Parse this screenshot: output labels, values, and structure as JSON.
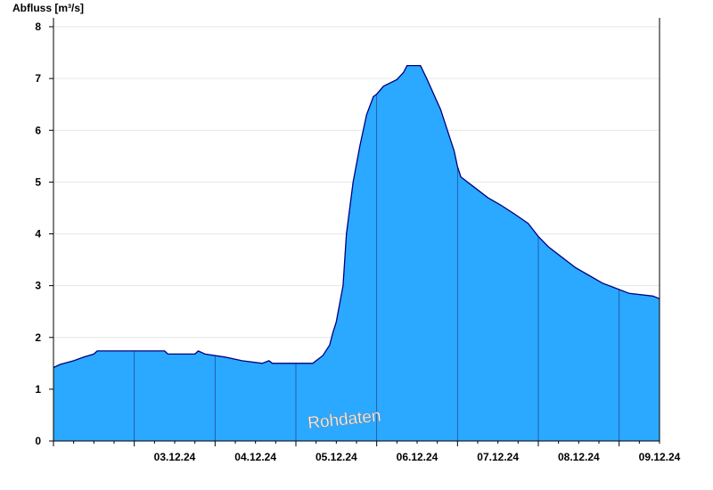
{
  "chart_data": {
    "type": "area",
    "ylabel": "Abfluss [m³/s]",
    "ylim": [
      0,
      8
    ],
    "yticks": [
      0,
      1,
      2,
      3,
      4,
      5,
      6,
      7,
      8
    ],
    "xrange": [
      "2024-12-02T00:00",
      "2024-12-09T12:00"
    ],
    "xtick_labels": [
      "03.12.24",
      "04.12.24",
      "05.12.24",
      "06.12.24",
      "07.12.24",
      "08.12.24",
      "09.12.24"
    ],
    "grid": true,
    "watermark": "Rohdaten",
    "colors": {
      "fill": "#2ba8ff",
      "line": "#00007f",
      "grid": "#e6e6e6",
      "daylines": "#1f4f9f"
    },
    "series": [
      {
        "values": [
          [
            "2024-12-02T00:00",
            1.42
          ],
          [
            "2024-12-02T02:00",
            1.48
          ],
          [
            "2024-12-02T06:00",
            1.55
          ],
          [
            "2024-12-02T09:00",
            1.62
          ],
          [
            "2024-12-02T12:00",
            1.68
          ],
          [
            "2024-12-02T13:00",
            1.74
          ],
          [
            "2024-12-03T09:00",
            1.74
          ],
          [
            "2024-12-03T10:00",
            1.68
          ],
          [
            "2024-12-03T18:00",
            1.68
          ],
          [
            "2024-12-03T19:00",
            1.74
          ],
          [
            "2024-12-03T21:00",
            1.68
          ],
          [
            "2024-12-04T03:00",
            1.62
          ],
          [
            "2024-12-04T08:00",
            1.55
          ],
          [
            "2024-12-04T14:00",
            1.5
          ],
          [
            "2024-12-04T16:00",
            1.55
          ],
          [
            "2024-12-04T17:00",
            1.5
          ],
          [
            "2024-12-05T05:00",
            1.5
          ],
          [
            "2024-12-05T08:00",
            1.65
          ],
          [
            "2024-12-05T10:00",
            1.85
          ],
          [
            "2024-12-05T11:00",
            2.1
          ],
          [
            "2024-12-05T12:00",
            2.3
          ],
          [
            "2024-12-05T14:00",
            3.0
          ],
          [
            "2024-12-05T15:00",
            4.0
          ],
          [
            "2024-12-05T17:00",
            5.0
          ],
          [
            "2024-12-05T19:00",
            5.7
          ],
          [
            "2024-12-05T21:00",
            6.3
          ],
          [
            "2024-12-05T23:00",
            6.65
          ],
          [
            "2024-12-06T00:00",
            6.7
          ],
          [
            "2024-12-06T02:00",
            6.85
          ],
          [
            "2024-12-06T06:00",
            6.98
          ],
          [
            "2024-12-06T08:00",
            7.12
          ],
          [
            "2024-12-06T09:00",
            7.25
          ],
          [
            "2024-12-06T13:00",
            7.25
          ],
          [
            "2024-12-06T15:00",
            6.98
          ],
          [
            "2024-12-06T19:00",
            6.4
          ],
          [
            "2024-12-06T23:00",
            5.6
          ],
          [
            "2024-12-07T00:00",
            5.3
          ],
          [
            "2024-12-07T01:00",
            5.1
          ],
          [
            "2024-12-07T05:00",
            4.9
          ],
          [
            "2024-12-07T09:00",
            4.7
          ],
          [
            "2024-12-07T13:00",
            4.55
          ],
          [
            "2024-12-07T17:00",
            4.38
          ],
          [
            "2024-12-07T21:00",
            4.2
          ],
          [
            "2024-12-08T00:00",
            3.95
          ],
          [
            "2024-12-08T03:00",
            3.75
          ],
          [
            "2024-12-08T07:00",
            3.55
          ],
          [
            "2024-12-08T11:00",
            3.35
          ],
          [
            "2024-12-08T15:00",
            3.2
          ],
          [
            "2024-12-08T19:00",
            3.05
          ],
          [
            "2024-12-08T23:00",
            2.95
          ],
          [
            "2024-12-09T03:00",
            2.85
          ],
          [
            "2024-12-09T10:00",
            2.8
          ],
          [
            "2024-12-09T12:00",
            2.75
          ]
        ]
      }
    ]
  }
}
